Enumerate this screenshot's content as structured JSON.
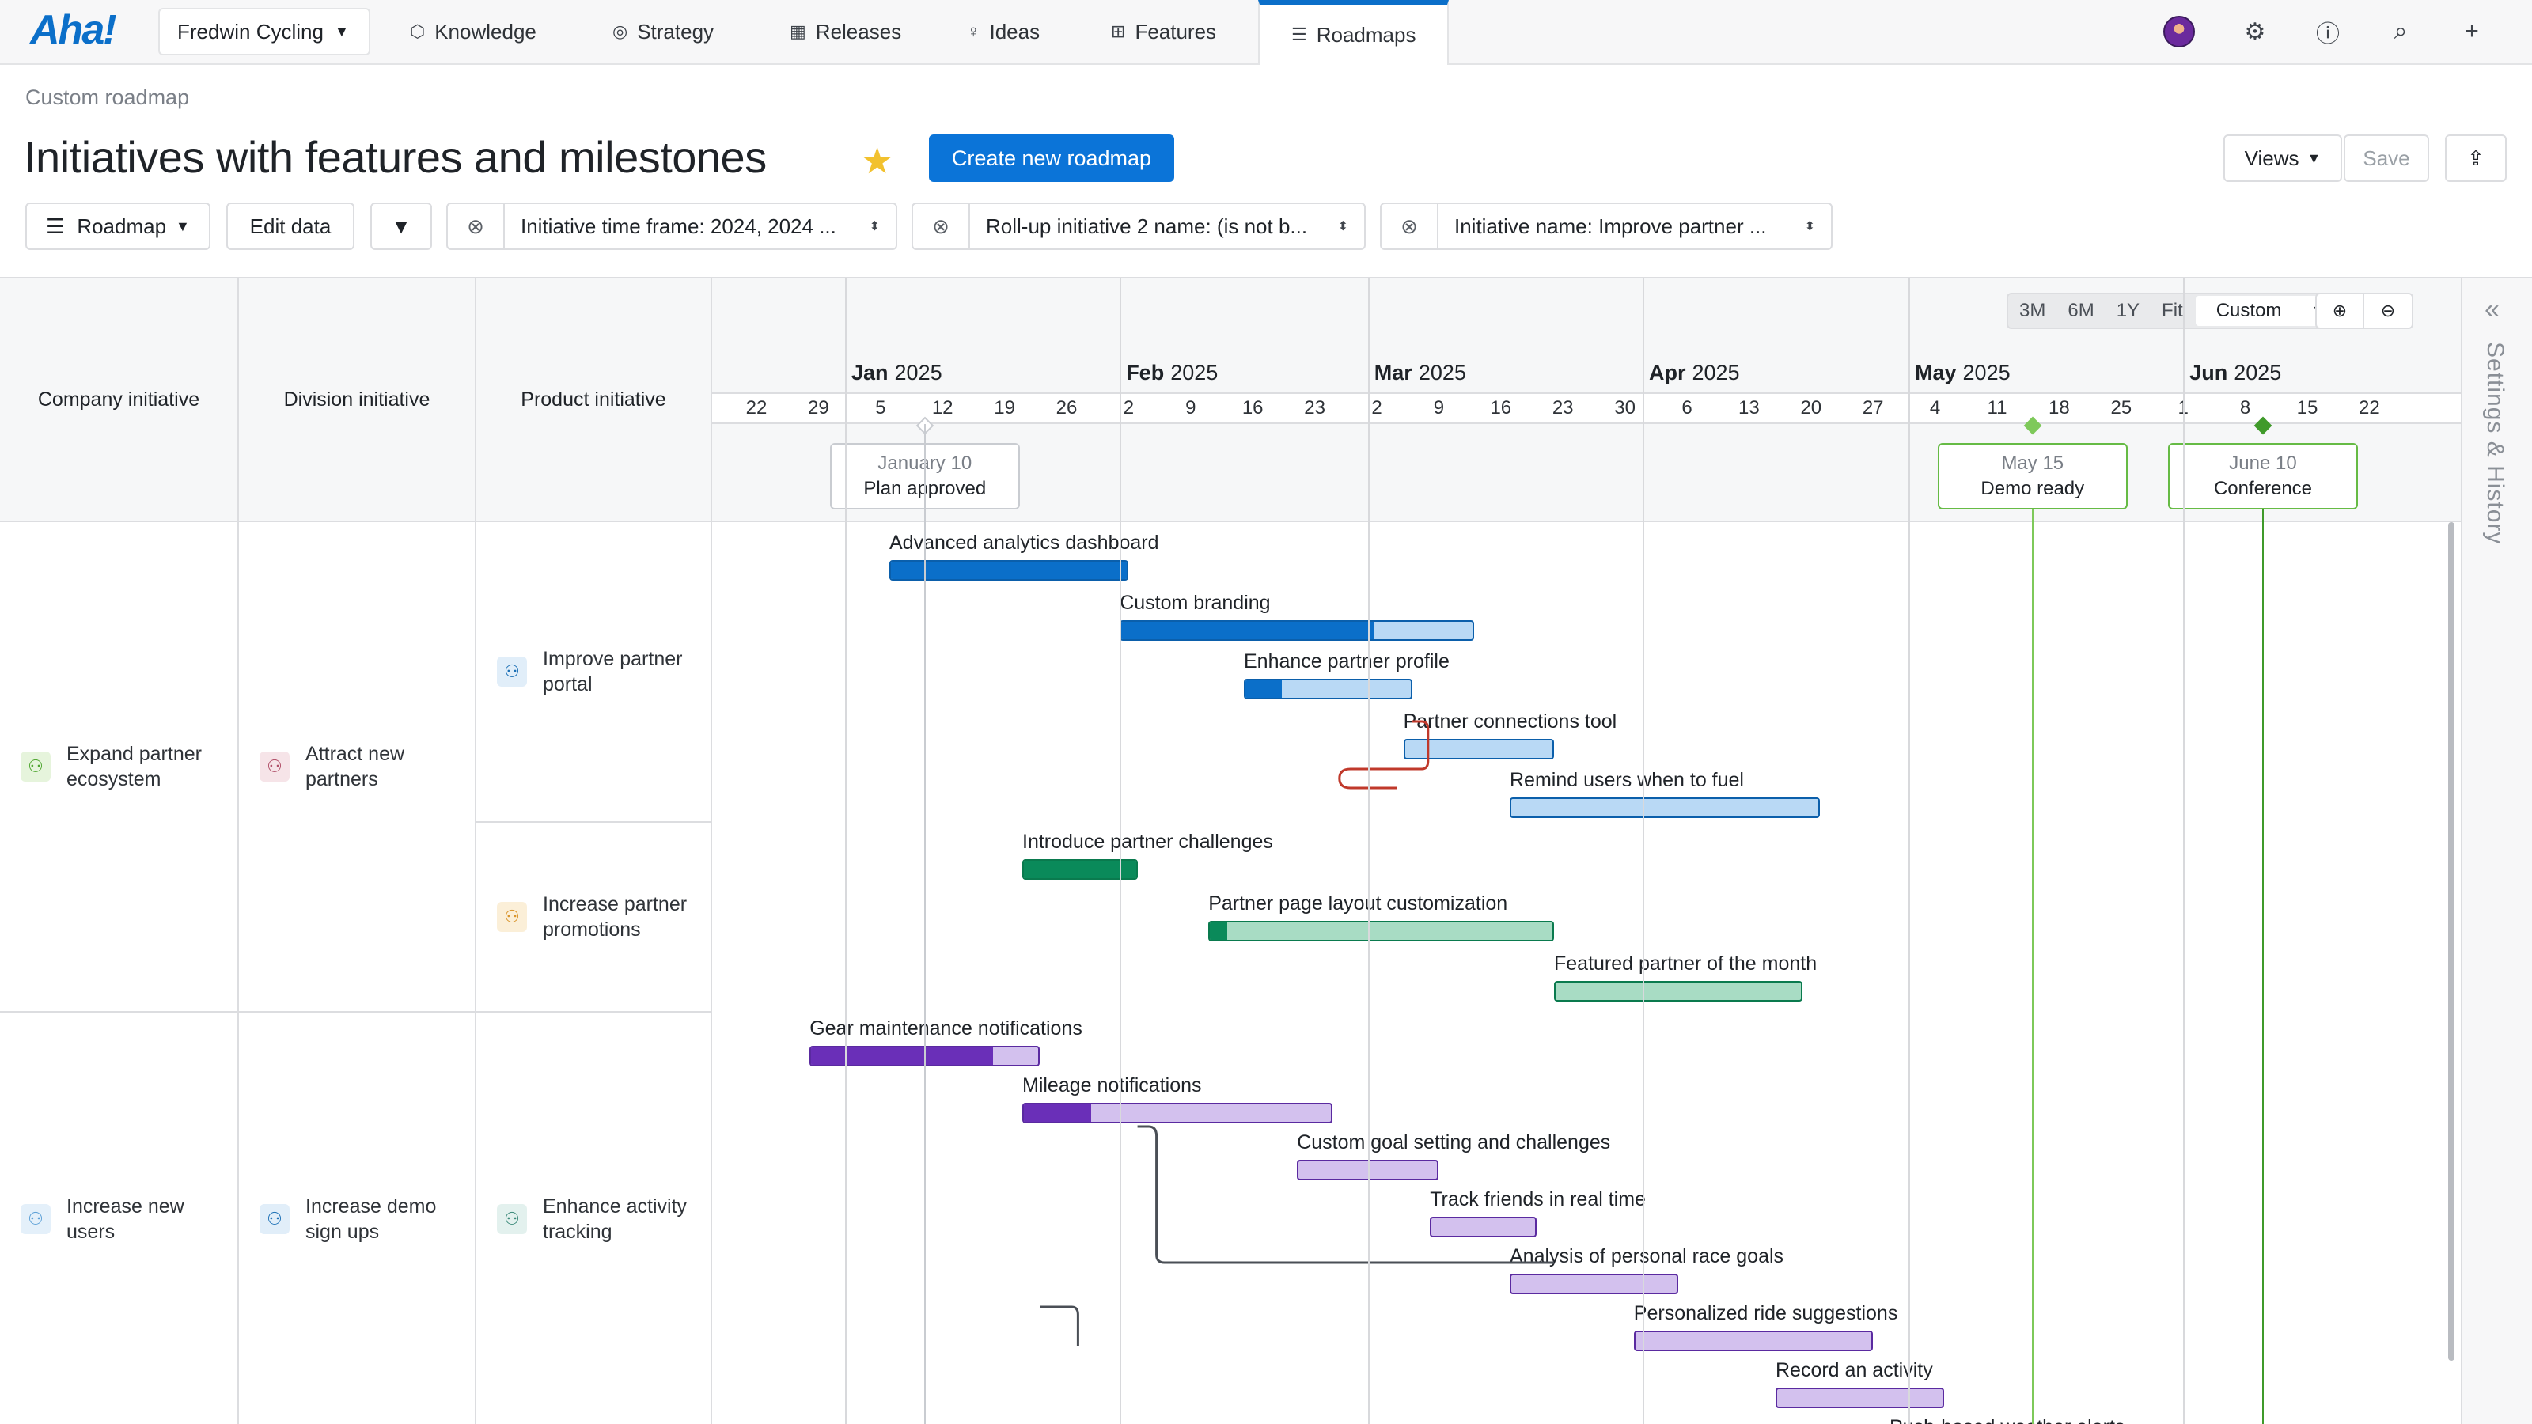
{
  "nav": {
    "logo": "Aha!",
    "workspace": "Fredwin Cycling",
    "items": [
      {
        "label": "Knowledge",
        "icon": "knowledge-icon"
      },
      {
        "label": "Strategy",
        "icon": "strategy-icon"
      },
      {
        "label": "Releases",
        "icon": "releases-icon"
      },
      {
        "label": "Ideas",
        "icon": "ideas-icon"
      },
      {
        "label": "Features",
        "icon": "features-icon"
      },
      {
        "label": "Roadmaps",
        "icon": "roadmaps-icon",
        "active": true
      }
    ]
  },
  "header": {
    "breadcrumb": "Custom roadmap",
    "title": "Initiatives with features and milestones",
    "create_button": "Create new roadmap",
    "views_button": "Views",
    "save_button": "Save"
  },
  "filters": {
    "roadmap_button": "Roadmap",
    "edit_data_button": "Edit data",
    "items": [
      "Initiative time frame: 2024, 2024 ...",
      "Roll-up initiative 2 name: (is not b...",
      "Initiative name: Improve partner ..."
    ]
  },
  "columns": {
    "company": "Company initiative",
    "division": "Division initiative",
    "product": "Product initiative"
  },
  "rows": {
    "company_1": "Expand partner ecosystem",
    "division_1": "Attract new partners",
    "product_1": "Improve partner portal",
    "product_2": "Increase partner promotions",
    "company_2": "Increase new users",
    "division_2": "Increase demo sign ups",
    "product_3": "Enhance activity tracking"
  },
  "zoom": {
    "options": [
      "3M",
      "6M",
      "1Y",
      "Fit"
    ],
    "selected": "Custom"
  },
  "timeline": {
    "months": [
      {
        "name": "Jan",
        "year": "2025"
      },
      {
        "name": "Feb",
        "year": "2025"
      },
      {
        "name": "Mar",
        "year": "2025"
      },
      {
        "name": "Apr",
        "year": "2025"
      },
      {
        "name": "May",
        "year": "2025"
      },
      {
        "name": "Jun",
        "year": "2025"
      }
    ],
    "week_ticks": [
      "22",
      "29",
      "5",
      "12",
      "19",
      "26",
      "2",
      "9",
      "16",
      "23",
      "2",
      "9",
      "16",
      "23",
      "30",
      "6",
      "13",
      "20",
      "27",
      "4",
      "11",
      "18",
      "25",
      "1",
      "8",
      "15",
      "22"
    ]
  },
  "milestones": [
    {
      "date": "January 10",
      "name": "Plan approved",
      "color": "#a9adb3"
    },
    {
      "date": "May 15",
      "name": "Demo ready",
      "color": "#7ec95a"
    },
    {
      "date": "June 10",
      "name": "Conference",
      "color": "#3f9a2a"
    }
  ],
  "features": [
    {
      "name": "Advanced analytics dashboard",
      "start": "2025-01-06",
      "end": "2025-02-02",
      "progress": 1.0,
      "color": "#0b6fc9"
    },
    {
      "name": "Custom branding",
      "start": "2025-02-01",
      "end": "2025-03-13",
      "progress": 0.72,
      "color": "#0b6fc9"
    },
    {
      "name": "Enhance partner profile",
      "start": "2025-02-15",
      "end": "2025-03-06",
      "progress": 0.22,
      "color": "#0b6fc9"
    },
    {
      "name": "Partner connections tool",
      "start": "2025-03-05",
      "end": "2025-03-22",
      "progress": 0.0,
      "color": "#0b6fc9"
    },
    {
      "name": "Remind users when to fuel",
      "start": "2025-03-17",
      "end": "2025-04-21",
      "progress": 0.0,
      "color": "#0b6fc9"
    },
    {
      "name": "Introduce partner challenges",
      "start": "2025-01-21",
      "end": "2025-02-03",
      "progress": 1.0,
      "color": "#0a8a5a"
    },
    {
      "name": "Partner page layout customization",
      "start": "2025-02-11",
      "end": "2025-03-22",
      "progress": 0.05,
      "color": "#0a8a5a"
    },
    {
      "name": "Featured partner of the month",
      "start": "2025-03-22",
      "end": "2025-04-19",
      "progress": 0.0,
      "color": "#0a8a5a"
    },
    {
      "name": "Gear maintenance notifications",
      "start": "2024-12-28",
      "end": "2025-01-23",
      "progress": 0.8,
      "color": "#6a2fb8"
    },
    {
      "name": "Mileage notifications",
      "start": "2025-01-21",
      "end": "2025-02-25",
      "progress": 0.22,
      "color": "#6a2fb8"
    },
    {
      "name": "Custom goal setting and challenges",
      "start": "2025-02-21",
      "end": "2025-03-09",
      "progress": 0.0,
      "color": "#6a2fb8"
    },
    {
      "name": "Track friends in real time",
      "start": "2025-03-08",
      "end": "2025-03-20",
      "progress": 0.0,
      "color": "#6a2fb8"
    },
    {
      "name": "Analysis of personal race goals",
      "start": "2025-03-17",
      "end": "2025-04-05",
      "progress": 0.0,
      "color": "#6a2fb8"
    },
    {
      "name": "Personalized ride suggestions",
      "start": "2025-03-31",
      "end": "2025-04-27",
      "progress": 0.0,
      "color": "#6a2fb8"
    },
    {
      "name": "Record an activity",
      "start": "2025-04-16",
      "end": "2025-05-05",
      "progress": 0.0,
      "color": "#6a2fb8"
    },
    {
      "name": "Push-based weather alerts",
      "start": "",
      "end": "",
      "progress": 0.0,
      "color": "#6a2fb8"
    }
  ],
  "side_panel": {
    "label": "Settings & History"
  }
}
